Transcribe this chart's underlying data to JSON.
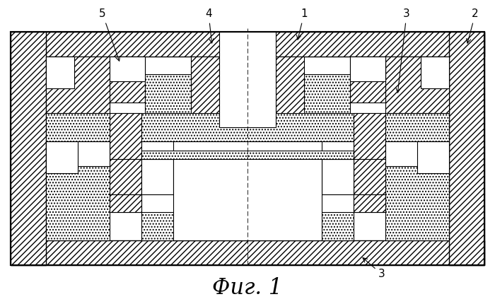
{
  "figure_label": "Фиг. 1",
  "fig_label_fontsize": 22,
  "background_color": "#ffffff",
  "lw": 0.8
}
